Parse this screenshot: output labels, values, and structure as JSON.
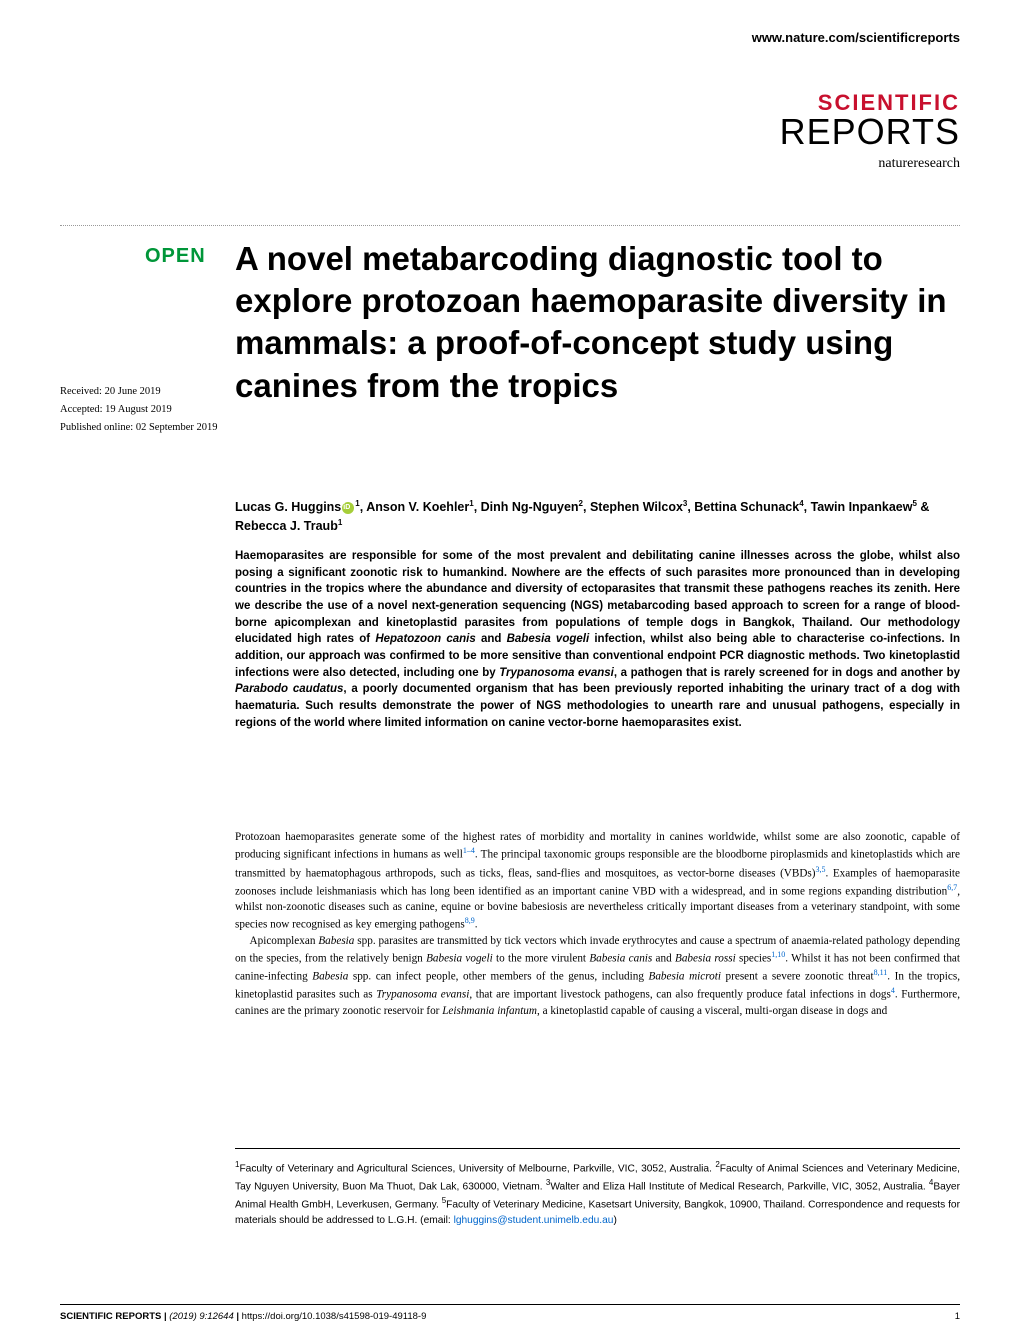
{
  "header": {
    "url": "www.nature.com/scientificreports"
  },
  "logo": {
    "line1": "SCIENTIFIC",
    "line2": "REPORTS",
    "subtitle": "natureresearch",
    "brand_color": "#c8102e"
  },
  "badge": {
    "open_label": "OPEN",
    "open_color": "#009639"
  },
  "dates": {
    "received": "Received: 20 June 2019",
    "accepted": "Accepted: 19 August 2019",
    "published": "Published online: 02 September 2019"
  },
  "article": {
    "title": "A novel metabarcoding diagnostic tool to explore protozoan haemoparasite diversity in mammals: a proof-of-concept study using canines from the tropics",
    "title_fontsize": 33,
    "authors_html": "Lucas G. Huggins<span class='orcid-icon' data-name='orcid-icon' data-interactable='false'></span><sup>1</sup>, Anson V. Koehler<sup>1</sup>, Dinh Ng-Nguyen<sup>2</sup>, Stephen Wilcox<sup>3</sup>, Bettina Schunack<sup>4</sup>, Tawin Inpankaew<sup>5</sup> & Rebecca J. Traub<sup>1</sup>",
    "abstract_html": "Haemoparasites are responsible for some of the most prevalent and debilitating canine illnesses across the globe, whilst also posing a significant zoonotic risk to humankind. Nowhere are the effects of such parasites more pronounced than in developing countries in the tropics where the abundance and diversity of ectoparasites that transmit these pathogens reaches its zenith. Here we describe the use of a novel next-generation sequencing (NGS) metabarcoding based approach to screen for a range of blood-borne apicomplexan and kinetoplastid parasites from populations of temple dogs in Bangkok, Thailand. Our methodology elucidated high rates of <span class='italic'>Hepatozoon canis</span> and <span class='italic'>Babesia vogeli</span> infection, whilst also being able to characterise co-infections. In addition, our approach was confirmed to be more sensitive than conventional endpoint PCR diagnostic methods. Two kinetoplastid infections were also detected, including one by <span class='italic'>Trypanosoma evansi</span>, a pathogen that is rarely screened for in dogs and another by <span class='italic'>Parabodo caudatus</span>, a poorly documented organism that has been previously reported inhabiting the urinary tract of a dog with haematuria. Such results demonstrate the power of NGS methodologies to unearth rare and unusual pathogens, especially in regions of the world where limited information on canine vector-borne haemoparasites exist.",
    "body_p1_html": "Protozoan haemoparasites generate some of the highest rates of morbidity and mortality in canines worldwide, whilst some are also zoonotic, capable of producing significant infections in humans as well<span class='ref-link'>1–4</span>. The principal taxonomic groups responsible are the bloodborne piroplasmids and kinetoplastids which are transmitted by haematophagous arthropods, such as ticks, fleas, sand-flies and mosquitoes, as vector-borne diseases (VBDs)<span class='ref-link'>3,5</span>. Examples of haemoparasite zoonoses include leishmaniasis which has long been identified as an important canine VBD with a widespread, and in some regions expanding distribution<span class='ref-link'>6,7</span>, whilst non-zoonotic diseases such as canine, equine or bovine babesiosis are nevertheless critically important diseases from a veterinary standpoint, with some species now recognised as key emerging pathogens<span class='ref-link'>8,9</span>.",
    "body_p2_html": "Apicomplexan <span class='italic'>Babesia</span> spp. parasites are transmitted by tick vectors which invade erythrocytes and cause a spectrum of anaemia-related pathology depending on the species, from the relatively benign <span class='italic'>Babesia vogeli</span> to the more virulent <span class='italic'>Babesia canis</span> and <span class='italic'>Babesia rossi</span> species<span class='ref-link'>1,10</span>. Whilst it has not been confirmed that canine-infecting <span class='italic'>Babesia</span> spp. can infect people, other members of the genus, including <span class='italic'>Babesia microti</span> present a severe zoonotic threat<span class='ref-link'>8,11</span>. In the tropics, kinetoplastid parasites such as <span class='italic'>Trypanosoma evansi</span>, that are important livestock pathogens, can also frequently produce fatal infections in dogs<span class='ref-link'>4</span>. Furthermore, canines are the primary zoonotic reservoir for <span class='italic'>Leishmania infantum</span>, a kinetoplastid capable of causing a visceral, multi-organ disease in dogs and",
    "affiliations_html": "<sup>1</sup>Faculty of Veterinary and Agricultural Sciences, University of Melbourne, Parkville, VIC, 3052, Australia. <sup>2</sup>Faculty of Animal Sciences and Veterinary Medicine, Tay Nguyen University, Buon Ma Thuot, Dak Lak, 630000, Vietnam. <sup>3</sup>Walter and Eliza Hall Institute of Medical Research, Parkville, VIC, 3052, Australia. <sup>4</sup>Bayer Animal Health GmbH, Leverkusen, Germany. <sup>5</sup>Faculty of Veterinary Medicine, Kasetsart University, Bangkok, 10900, Thailand. Correspondence and requests for materials should be addressed to L.G.H. (email: <span class='email-link'>lghuggins@student.unimelb.edu.au</span>)"
  },
  "footer": {
    "journal": "SCIENTIFIC REPORTS",
    "citation": "(2019) 9:12644",
    "doi": "https://doi.org/10.1038/s41598-019-49118-9",
    "page": "1"
  },
  "colors": {
    "background": "#ffffff",
    "text": "#000000",
    "link": "#0066cc",
    "orcid": "#a6ce39"
  },
  "typography": {
    "title_font": "Arial",
    "body_font": "Georgia",
    "abstract_fontsize": 11.5,
    "body_fontsize": 11.2,
    "affil_fontsize": 10.2,
    "footer_fontsize": 9.5
  }
}
